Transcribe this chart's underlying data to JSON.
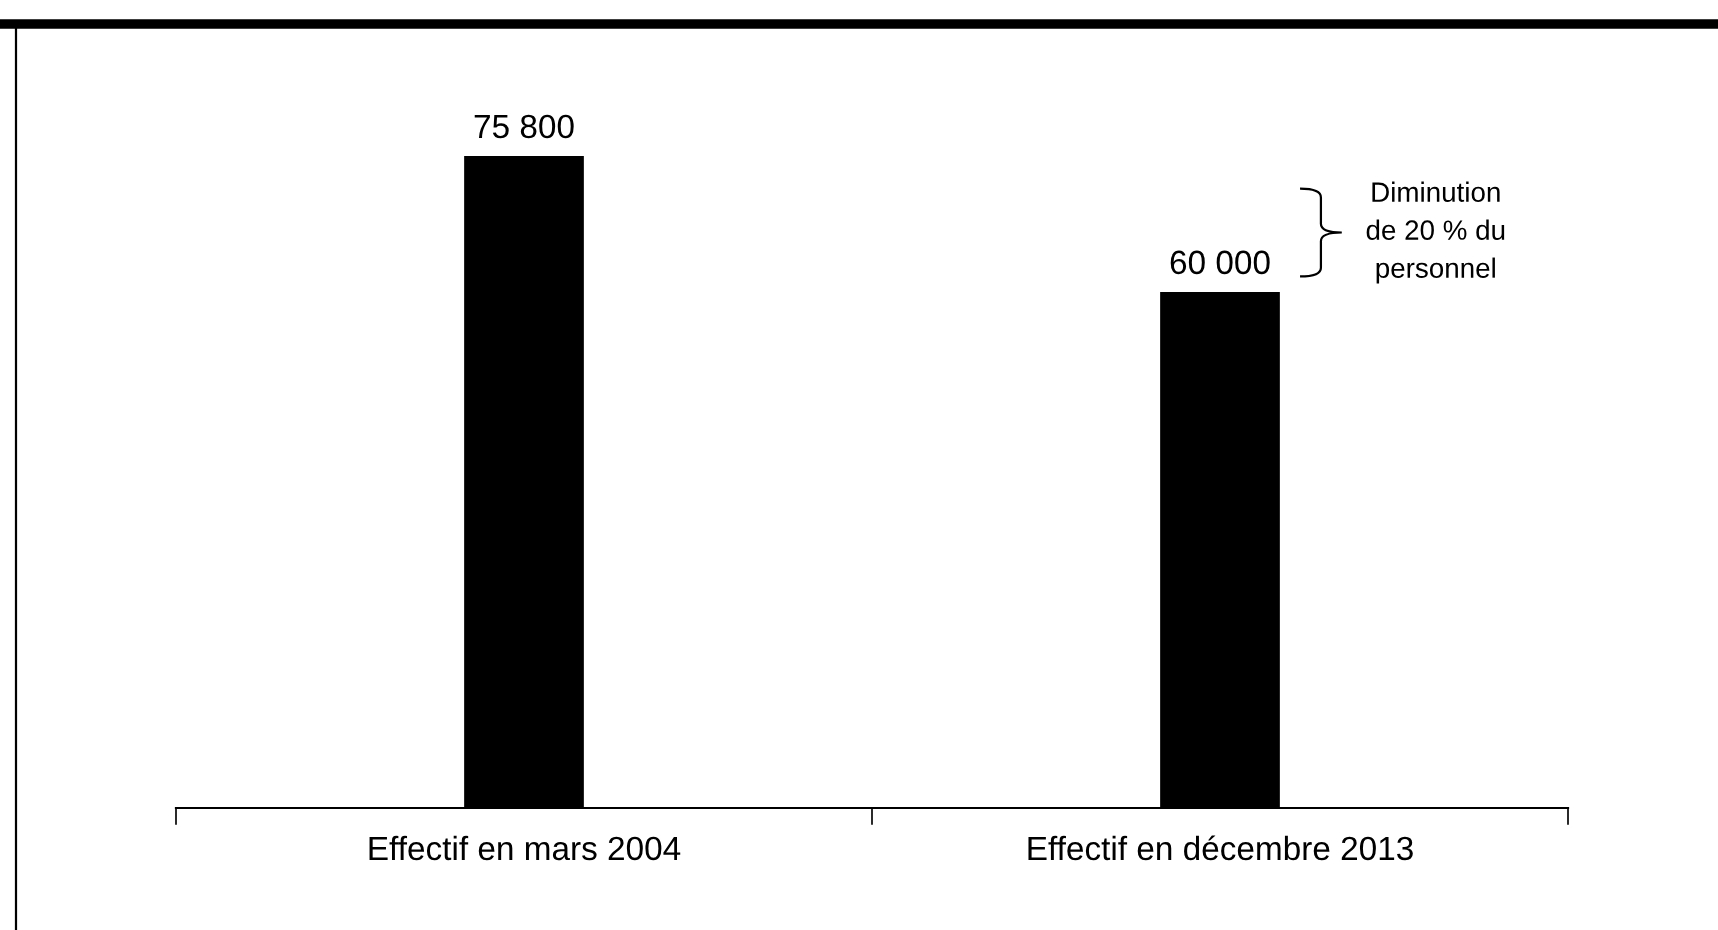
{
  "chart_data": {
    "type": "bar",
    "categories": [
      "Effectif en mars 2004",
      "Effectif en décembre 2013"
    ],
    "values": [
      75800,
      60000
    ],
    "value_labels": [
      "75 800",
      "60 000"
    ],
    "color": "#000000",
    "annotations": [
      "Diminution\nde 20 % du\npersonnel"
    ]
  }
}
